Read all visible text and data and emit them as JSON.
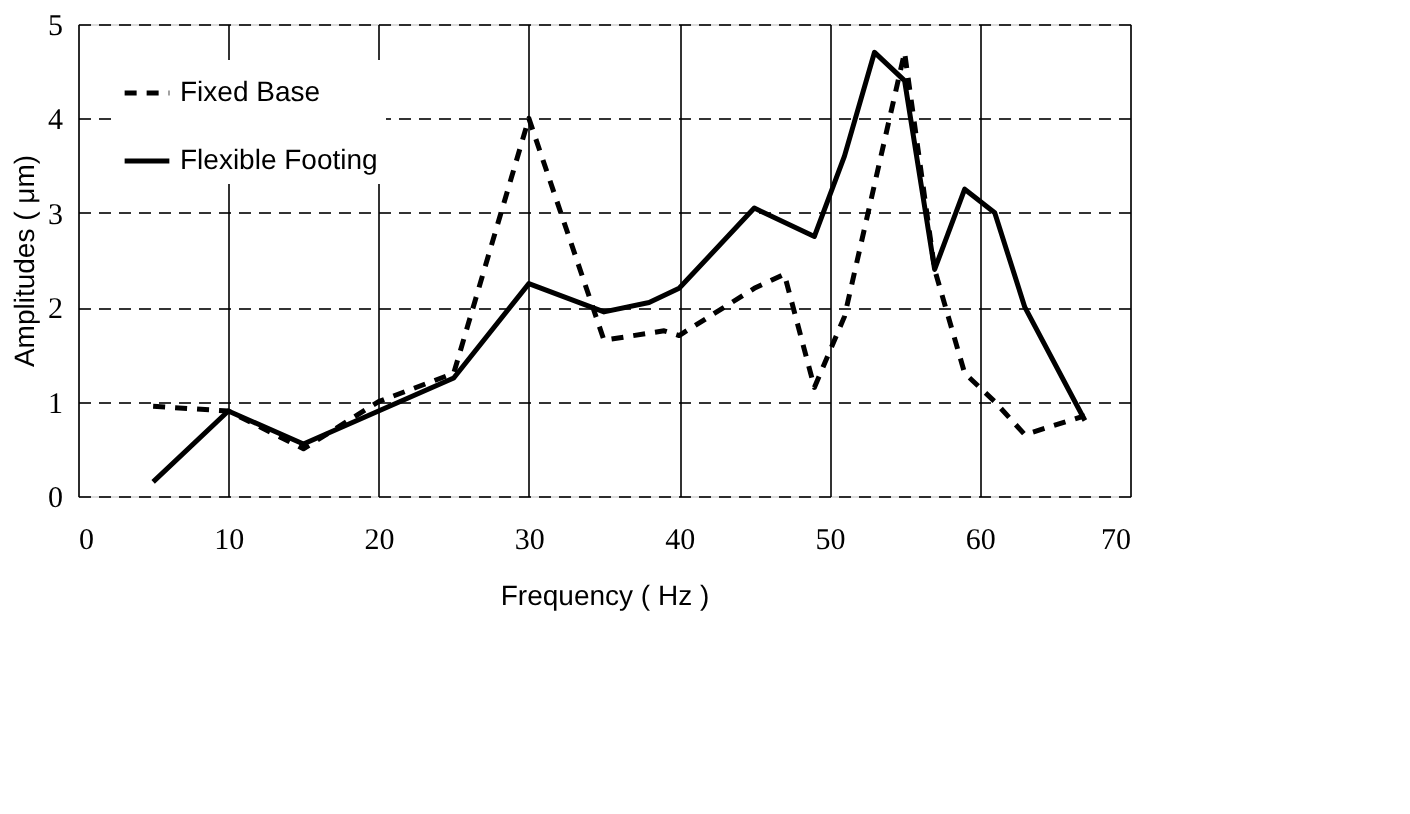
{
  "chart_data": {
    "type": "line",
    "xlabel": "Frequency ( Hz )",
    "ylabel": "Amplitudes ( μm)",
    "xlim": [
      0,
      70
    ],
    "ylim": [
      0,
      5
    ],
    "xticks": [
      0,
      10,
      20,
      30,
      40,
      50,
      60,
      70
    ],
    "yticks": [
      0,
      1,
      2,
      3,
      4,
      5
    ],
    "grid": true,
    "legend": "top left",
    "series": [
      {
        "name": "Fixed Base",
        "color": "#000000",
        "line_style": "dashed",
        "x": [
          5,
          10,
          15,
          20,
          25,
          30,
          35,
          39,
          40,
          45,
          47,
          49,
          51,
          55,
          57,
          59,
          61,
          63,
          67
        ],
        "values": [
          0.95,
          0.9,
          0.5,
          1.0,
          1.3,
          4.0,
          1.65,
          1.75,
          1.7,
          2.2,
          2.35,
          1.15,
          1.9,
          4.7,
          2.4,
          1.3,
          1.0,
          0.65,
          0.85
        ]
      },
      {
        "name": "Flexible Footing",
        "color": "#000000",
        "line_style": "solid",
        "x": [
          5,
          10,
          15,
          20,
          25,
          30,
          35,
          38,
          40,
          45,
          49,
          51,
          53,
          55,
          57,
          59,
          61,
          63,
          67
        ],
        "values": [
          0.15,
          0.9,
          0.55,
          0.9,
          1.25,
          2.25,
          1.95,
          2.05,
          2.2,
          3.05,
          2.75,
          3.6,
          4.7,
          4.4,
          2.4,
          3.25,
          3.0,
          2.0,
          0.8
        ]
      }
    ]
  }
}
